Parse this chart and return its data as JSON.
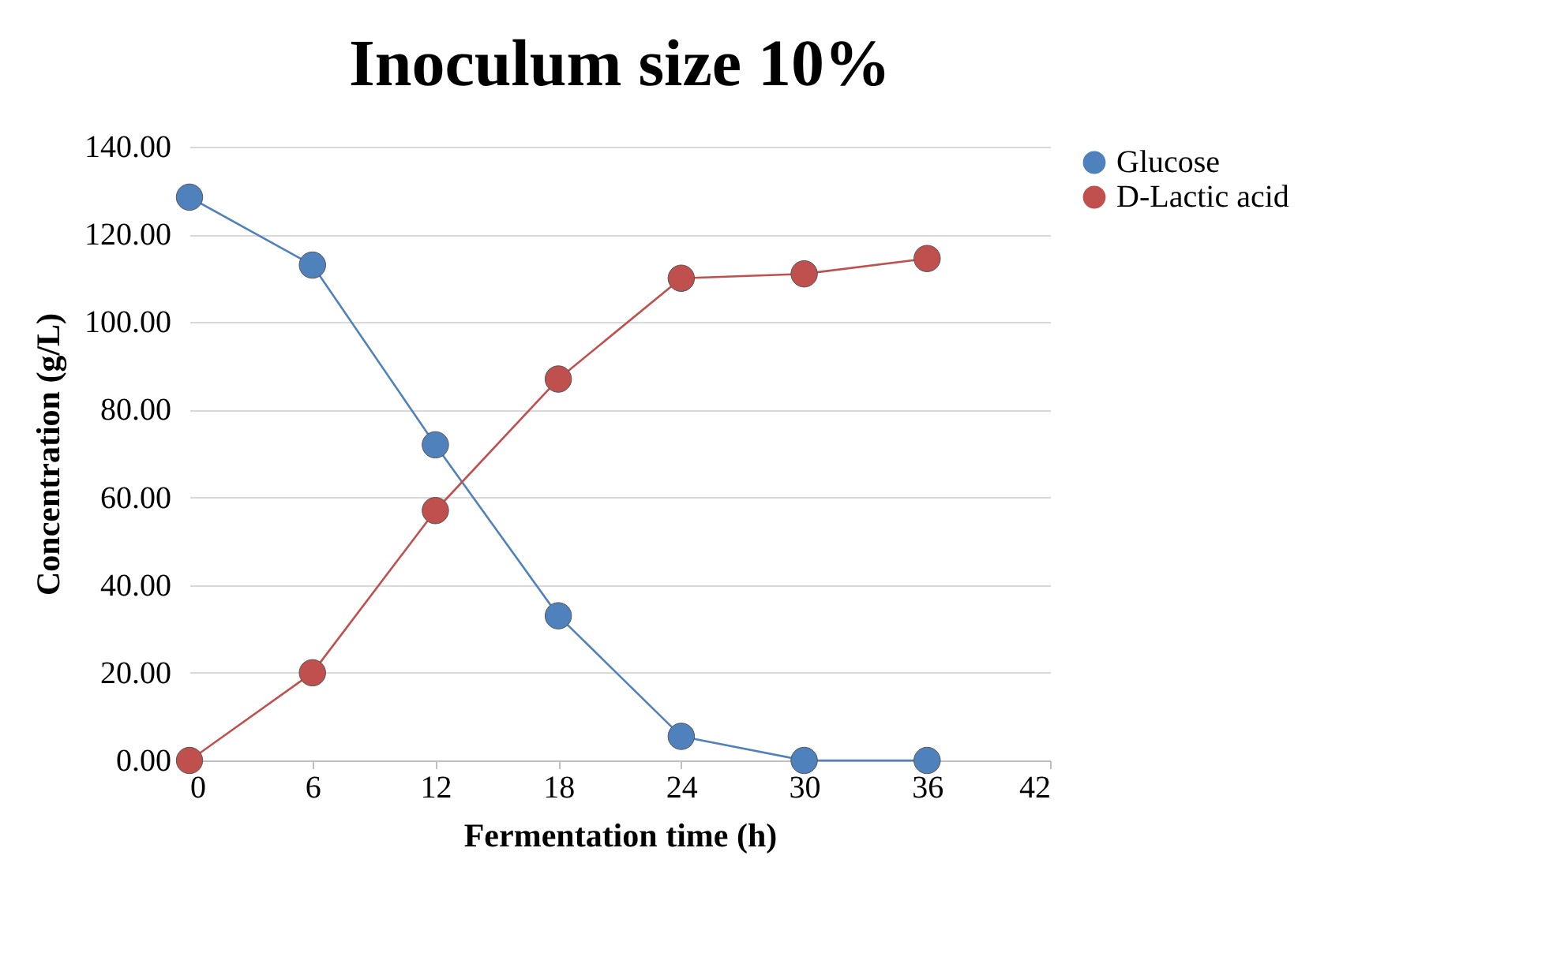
{
  "chart_data": {
    "type": "line",
    "title": "Inoculum size 10%",
    "xlabel": "Fermentation time (h)",
    "ylabel": "Concentration (g/L)",
    "x": [
      0,
      6,
      12,
      18,
      24,
      30,
      36
    ],
    "series": [
      {
        "name": "Glucose",
        "color": "#4f81bd",
        "values": [
          128.5,
          113,
          72,
          33,
          5.5,
          0,
          0
        ]
      },
      {
        "name": "D-Lactic acid",
        "color": "#c0504d",
        "values": [
          0,
          20,
          57,
          87,
          110,
          111,
          114.5
        ]
      }
    ],
    "xlim": [
      0,
      42
    ],
    "xticks": [
      0,
      6,
      12,
      18,
      24,
      30,
      36,
      42
    ],
    "ylim": [
      0,
      140
    ],
    "yticks": [
      {
        "value": 0,
        "label": "0.00"
      },
      {
        "value": 20,
        "label": "20.00"
      },
      {
        "value": 40,
        "label": "40.00"
      },
      {
        "value": 60,
        "label": "60.00"
      },
      {
        "value": 80,
        "label": "80.00"
      },
      {
        "value": 100,
        "label": "100.00"
      },
      {
        "value": 120,
        "label": "120.00"
      },
      {
        "value": 140,
        "label": "140.00"
      }
    ],
    "grid": "y",
    "legend": "right",
    "marker": "circle",
    "line_style": "solid"
  }
}
